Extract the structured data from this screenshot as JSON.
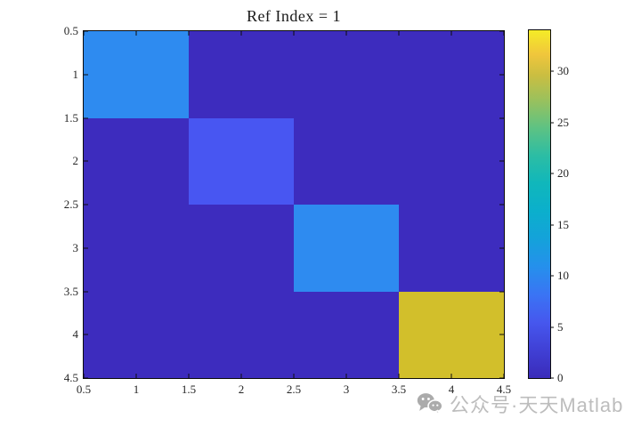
{
  "figure": {
    "background": "#ffffff"
  },
  "chart_data": {
    "type": "heatmap",
    "title": "Ref Index = 1",
    "x_ticks": [
      "0.5",
      "1",
      "1.5",
      "2",
      "2.5",
      "3",
      "3.5",
      "4",
      "4.5"
    ],
    "y_ticks": [
      "0.5",
      "1",
      "1.5",
      "2",
      "2.5",
      "3",
      "3.5",
      "4",
      "4.5"
    ],
    "x_range": [
      0.5,
      4.5
    ],
    "y_range": [
      0.5,
      4.5
    ],
    "grid": false,
    "legend": false,
    "matrix": [
      [
        10,
        0,
        0,
        0
      ],
      [
        0,
        5,
        0,
        0
      ],
      [
        0,
        0,
        10,
        0
      ],
      [
        0,
        0,
        0,
        30
      ]
    ],
    "cell_colors": {
      "0": "#3d2cbe",
      "5": "#4856f2",
      "10": "#2e8bf0",
      "30": "#d2bf2b"
    },
    "colormap": "parula",
    "colorbar": {
      "position": "right",
      "ticks": [
        0,
        5,
        10,
        15,
        20,
        25,
        30
      ],
      "min": 0,
      "max": 34,
      "gradient_stops": [
        {
          "pos": 0,
          "color": "#3a2bb9"
        },
        {
          "pos": 8,
          "color": "#4040d5"
        },
        {
          "pos": 16,
          "color": "#4657ee"
        },
        {
          "pos": 24,
          "color": "#3a74f4"
        },
        {
          "pos": 32,
          "color": "#2590ec"
        },
        {
          "pos": 40,
          "color": "#14a2da"
        },
        {
          "pos": 48,
          "color": "#0bafcc"
        },
        {
          "pos": 56,
          "color": "#10b7bb"
        },
        {
          "pos": 64,
          "color": "#2cbda4"
        },
        {
          "pos": 72,
          "color": "#5ec283"
        },
        {
          "pos": 80,
          "color": "#9bc15c"
        },
        {
          "pos": 87,
          "color": "#cabe41"
        },
        {
          "pos": 93,
          "color": "#f0c63c"
        },
        {
          "pos": 100,
          "color": "#f5ec27"
        }
      ]
    }
  },
  "watermark": {
    "icon": "wechat-icon",
    "text": "公众号·天天Matlab",
    "color": "#bdbdbd",
    "icon_color": "#ababab"
  }
}
